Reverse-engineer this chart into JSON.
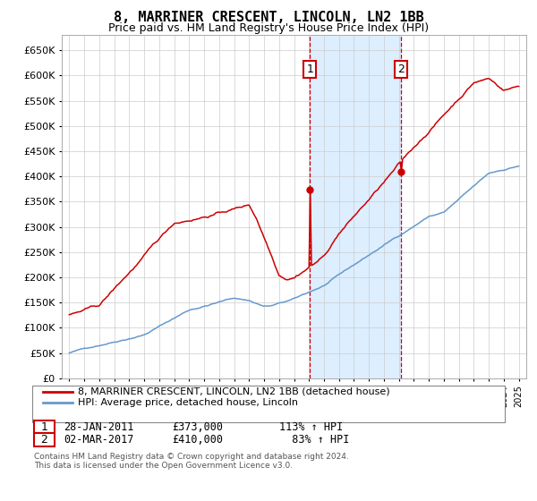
{
  "title": "8, MARRINER CRESCENT, LINCOLN, LN2 1BB",
  "subtitle": "Price paid vs. HM Land Registry's House Price Index (HPI)",
  "ytick_values": [
    0,
    50000,
    100000,
    150000,
    200000,
    250000,
    300000,
    350000,
    400000,
    450000,
    500000,
    550000,
    600000,
    650000
  ],
  "ylim": [
    0,
    680000
  ],
  "sale1_date": 2011.07,
  "sale1_price": 373000,
  "sale2_date": 2017.16,
  "sale2_price": 410000,
  "shade_color": "#ddeeff",
  "legend_line1": "8, MARRINER CRESCENT, LINCOLN, LN2 1BB (detached house)",
  "legend_line2": "HPI: Average price, detached house, Lincoln",
  "footnote1": "Contains HM Land Registry data © Crown copyright and database right 2024.",
  "footnote2": "This data is licensed under the Open Government Licence v3.0.",
  "hpi_color": "#6699cc",
  "price_color": "#cc0000"
}
